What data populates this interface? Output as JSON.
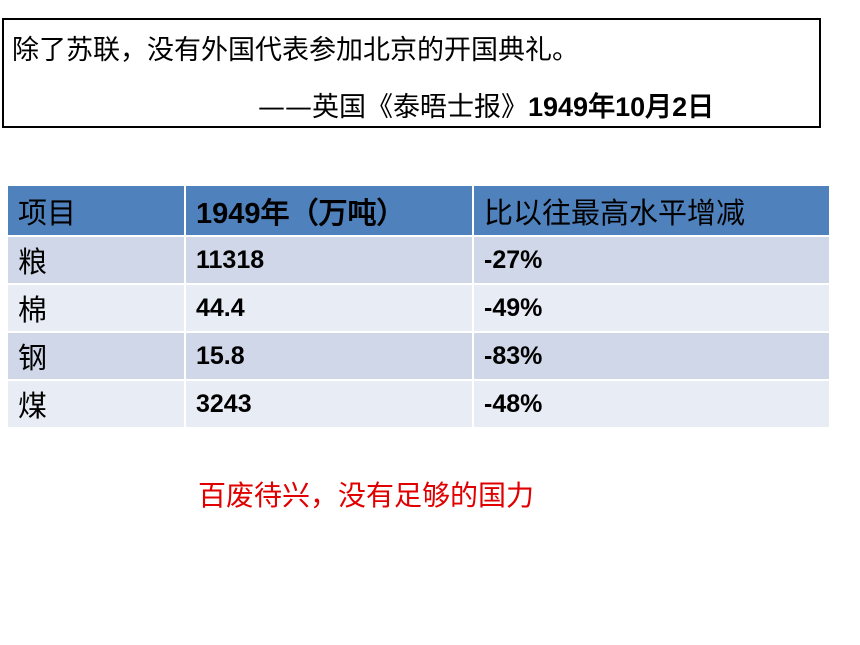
{
  "quote": {
    "text": "除了苏联，没有外国代表参加北京的开国典礼。",
    "source_prefix": "——英国《泰晤士报》",
    "source_date": "1949年10月2日"
  },
  "table": {
    "headers": [
      "项目",
      "1949年（万吨）",
      "比以往最高水平增减"
    ],
    "rows": [
      {
        "item": "粮",
        "amount": "11318",
        "change": "-27%"
      },
      {
        "item": "棉",
        "amount": "44.4",
        "change": "-49%"
      },
      {
        "item": "钢",
        "amount": "15.8",
        "change": "-83%"
      },
      {
        "item": "煤",
        "amount": "3243",
        "change": "-48%"
      }
    ]
  },
  "conclusion": "百废待兴，没有足够的国力",
  "colors": {
    "header_bg": "#4f81bd",
    "row_odd_bg": "#cfd7e8",
    "row_even_bg": "#e8ecf4",
    "conclusion_text": "#e00000"
  }
}
